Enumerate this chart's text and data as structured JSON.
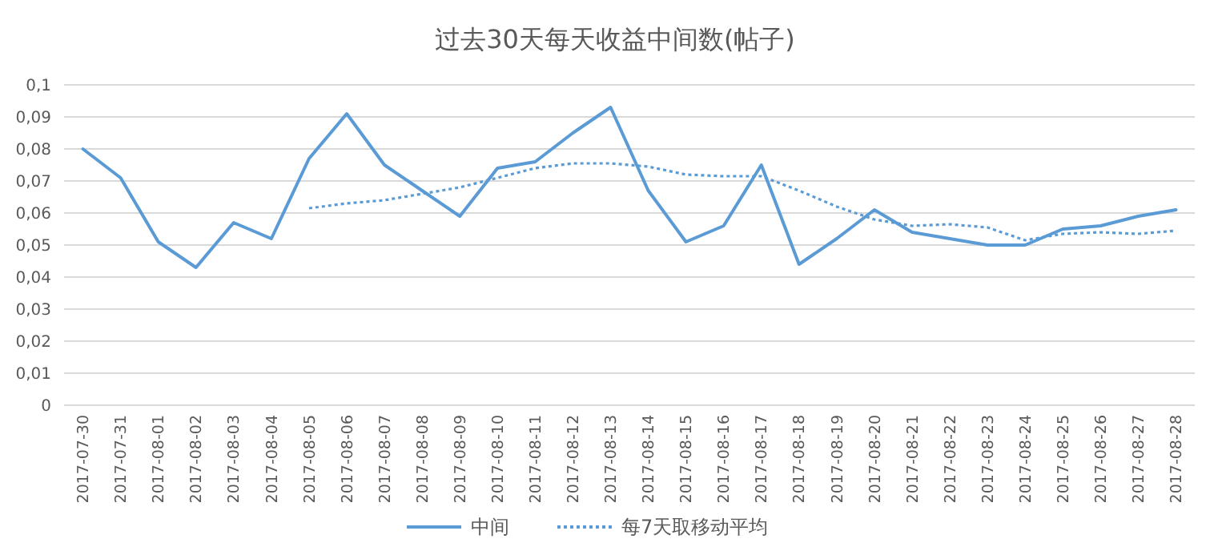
{
  "chart_data": {
    "type": "line",
    "title": "过去30天每天收益中间数(帖子)",
    "categories": [
      "2017-07-30",
      "2017-07-31",
      "2017-08-01",
      "2017-08-02",
      "2017-08-03",
      "2017-08-04",
      "2017-08-05",
      "2017-08-06",
      "2017-08-07",
      "2017-08-08",
      "2017-08-09",
      "2017-08-10",
      "2017-08-11",
      "2017-08-12",
      "2017-08-13",
      "2017-08-14",
      "2017-08-15",
      "2017-08-16",
      "2017-08-17",
      "2017-08-18",
      "2017-08-19",
      "2017-08-20",
      "2017-08-21",
      "2017-08-22",
      "2017-08-23",
      "2017-08-24",
      "2017-08-25",
      "2017-08-26",
      "2017-08-27",
      "2017-08-28"
    ],
    "series": [
      {
        "name": "中间",
        "color": "#5b9bd5",
        "line_style": "solid",
        "values": [
          0.08,
          0.071,
          0.051,
          0.043,
          0.057,
          0.052,
          0.077,
          0.091,
          0.075,
          0.067,
          0.059,
          0.074,
          0.076,
          0.085,
          0.093,
          0.067,
          0.051,
          0.056,
          0.075,
          0.044,
          0.052,
          0.061,
          0.054,
          0.052,
          0.05,
          0.05,
          0.055,
          0.056,
          0.059,
          0.061
        ]
      },
      {
        "name": "每7天取移动平均",
        "color": "#5b9bd5",
        "line_style": "dotted",
        "values": [
          null,
          null,
          null,
          null,
          null,
          null,
          0.0615,
          0.063,
          0.064,
          0.066,
          0.068,
          0.071,
          0.074,
          0.0755,
          0.0755,
          0.0745,
          0.072,
          0.0715,
          0.0715,
          0.067,
          0.062,
          0.058,
          0.056,
          0.0565,
          0.0555,
          0.0515,
          0.0535,
          0.054,
          0.0535,
          0.0545
        ]
      }
    ],
    "ylim": [
      0,
      0.1
    ],
    "yticks": [
      0,
      {
        "value": 0.01,
        "label": "0,01"
      },
      {
        "value": 0.02,
        "label": "0,02"
      },
      {
        "value": 0.03,
        "label": "0,03"
      },
      {
        "value": 0.04,
        "label": "0,04"
      },
      {
        "value": 0.05,
        "label": "0,05"
      },
      {
        "value": 0.06,
        "label": "0,06"
      },
      {
        "value": 0.07,
        "label": "0,07"
      },
      {
        "value": 0.08,
        "label": "0,08"
      },
      {
        "value": 0.09,
        "label": "0,09"
      },
      {
        "value": 0.1,
        "label": "0,1"
      }
    ],
    "grid": "y",
    "legend": "bottom",
    "marker": "none"
  }
}
